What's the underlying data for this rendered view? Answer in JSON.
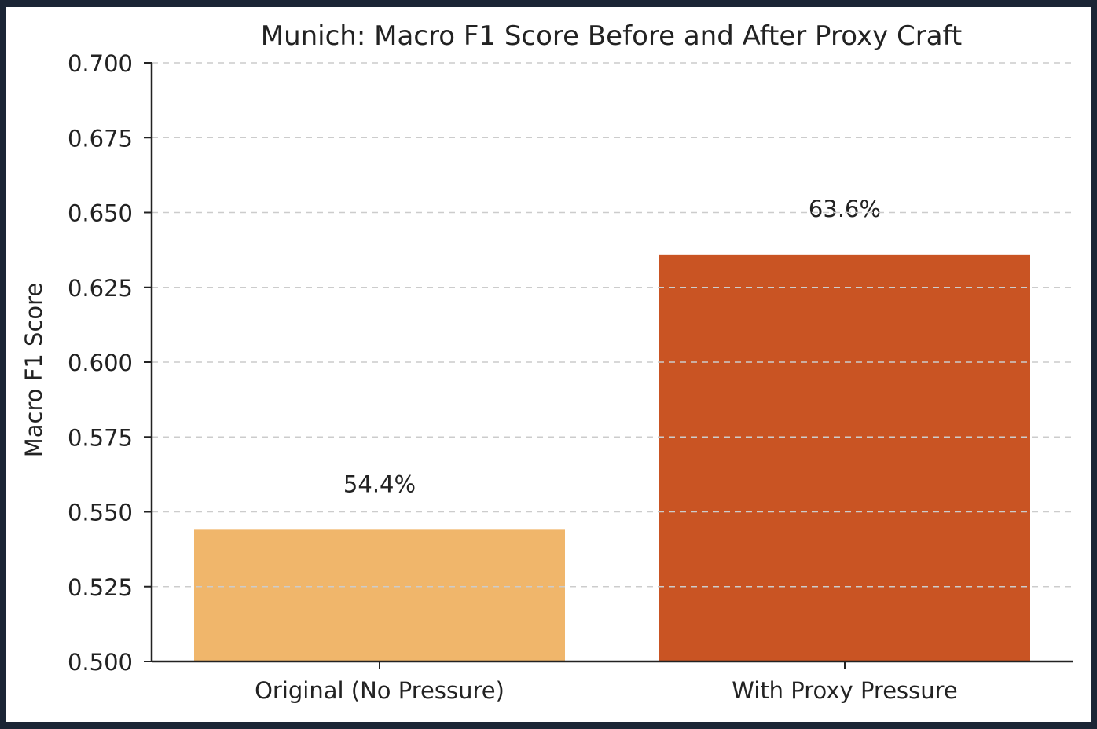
{
  "chart_data": {
    "type": "bar",
    "title": "Munich: Macro F1 Score Before and After Proxy Craft",
    "xlabel": "",
    "ylabel": "Macro F1 Score",
    "categories": [
      "Original (No Pressure)",
      "With Proxy Pressure"
    ],
    "values": [
      0.544,
      0.636
    ],
    "data_labels": [
      "54.4%",
      "63.6%"
    ],
    "colors": [
      "#f0b66b",
      "#c95423"
    ],
    "ylim": [
      0.5,
      0.7
    ],
    "yticks": [
      "0.500",
      "0.525",
      "0.550",
      "0.575",
      "0.600",
      "0.625",
      "0.650",
      "0.675",
      "0.700"
    ],
    "grid": "y dashed",
    "legend": null
  }
}
